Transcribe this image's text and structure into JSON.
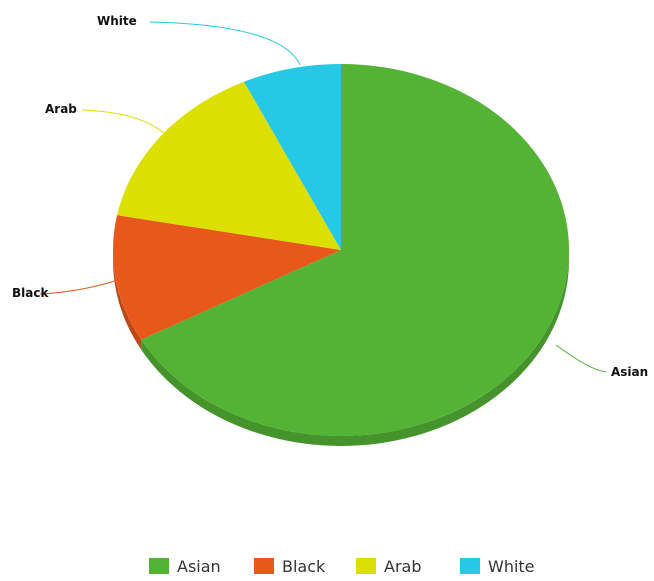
{
  "chart_data": {
    "type": "pie",
    "title": "",
    "categories": [
      "Asian",
      "Black",
      "Arab",
      "White"
    ],
    "values": [
      67,
      11,
      15,
      7
    ],
    "colors": [
      "#53b335",
      "#e8581b",
      "#dce000",
      "#25c9e6"
    ],
    "data_labels": [
      "Asian",
      "Black",
      "Arab",
      "White"
    ],
    "legend": {
      "position": "bottom",
      "items": [
        "Asian",
        "Black",
        "Arab",
        "White"
      ]
    },
    "style": "3d-tilted"
  }
}
